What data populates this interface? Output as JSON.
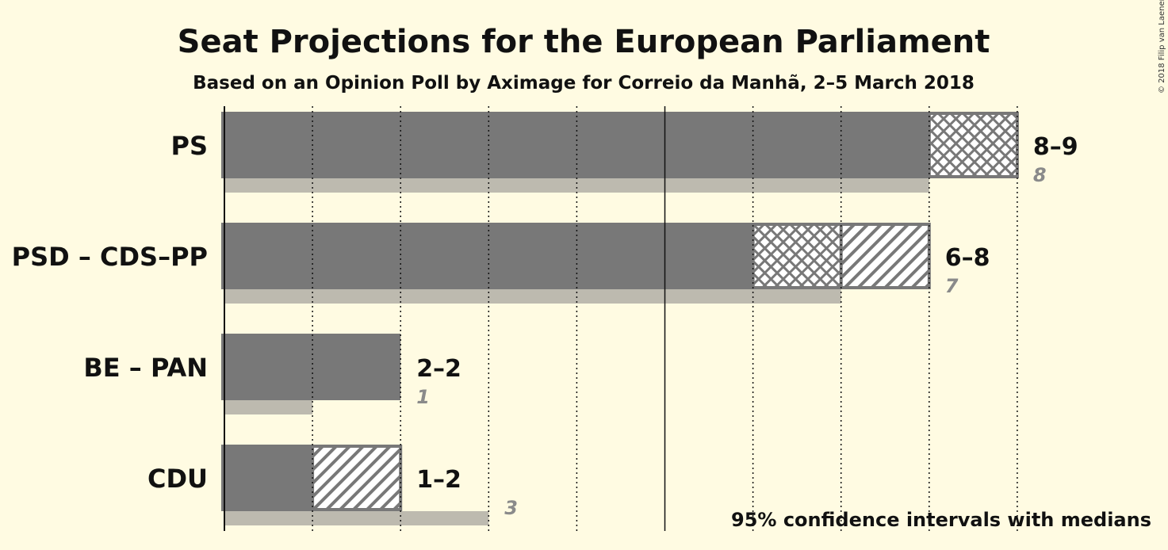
{
  "title": "Seat Projections for the European Parliament",
  "subtitle": "Based on an Opinion Poll by Aximage for Correio da Manhã, 2–5 March 2018",
  "footnote": "95% confidence intervals with medians",
  "copyright": "© 2018 Filip van Laenen",
  "colors": {
    "background": "#fffbe2",
    "bar": "#787878",
    "last_result": "#bdbaaf",
    "text_last": "#8a8a8a"
  },
  "chart_data": {
    "type": "bar",
    "orientation": "horizontal",
    "x_range": [
      0,
      9
    ],
    "gridlines": [
      1,
      2,
      3,
      4,
      5,
      6,
      7,
      8,
      9
    ],
    "solid_gridlines": [
      0,
      5
    ],
    "parties": [
      {
        "name": "PS",
        "ci_low": 8,
        "median": 8,
        "ci_high": 9,
        "range_label": "8–9",
        "last_result": 8,
        "last_label": "8"
      },
      {
        "name": "PSD – CDS–PP",
        "ci_low": 6,
        "median": 7,
        "ci_high": 8,
        "range_label": "6–8",
        "last_result": 7,
        "last_label": "7"
      },
      {
        "name": "BE – PAN",
        "ci_low": 2,
        "median": 2,
        "ci_high": 2,
        "range_label": "2–2",
        "last_result": 1,
        "last_label": "1"
      },
      {
        "name": "CDU",
        "ci_low": 1,
        "median": 1,
        "ci_high": 2,
        "range_label": "1–2",
        "last_result": 3,
        "last_label": "3"
      }
    ]
  }
}
